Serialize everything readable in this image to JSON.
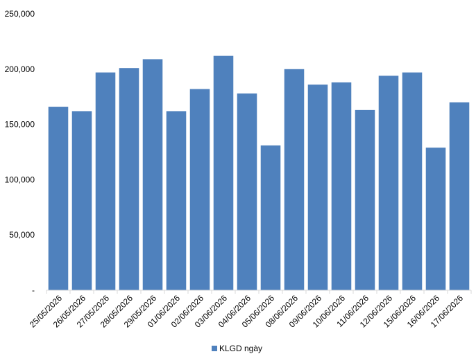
{
  "chart_data": {
    "type": "bar",
    "categories": [
      "25/05/2026",
      "26/05/2026",
      "27/05/2026",
      "28/05/2026",
      "29/05/2026",
      "01/06/2026",
      "02/06/2026",
      "03/06/2026",
      "04/06/2026",
      "05/06/2026",
      "08/06/2026",
      "09/06/2026",
      "10/06/2026",
      "11/06/2026",
      "12/06/2026",
      "15/06/2026",
      "16/06/2026",
      "17/06/2026"
    ],
    "series": [
      {
        "name": "KLGD ngày",
        "color": "#4f81bd",
        "values": [
          166000,
          162000,
          197000,
          201000,
          209000,
          162000,
          182000,
          212000,
          178000,
          131000,
          200000,
          186000,
          188000,
          163000,
          194000,
          197000,
          129000,
          170000
        ]
      }
    ],
    "ylim": [
      0,
      250000
    ],
    "yticks": [
      {
        "value": 0,
        "label": "-"
      },
      {
        "value": 50000,
        "label": "50,000"
      },
      {
        "value": 100000,
        "label": "100,000"
      },
      {
        "value": 150000,
        "label": "150,000"
      },
      {
        "value": 200000,
        "label": "200,000"
      },
      {
        "value": 250000,
        "label": "250,000"
      }
    ],
    "grid": false,
    "legend": "bottom"
  }
}
